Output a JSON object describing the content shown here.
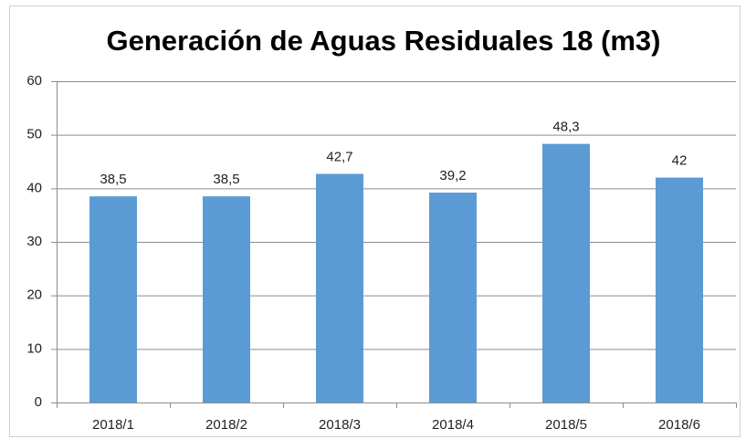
{
  "chart_data": {
    "type": "bar",
    "title": "Generación de Aguas Residuales 18 (m3)",
    "categories": [
      "2018/1",
      "2018/2",
      "2018/3",
      "2018/4",
      "2018/5",
      "2018/6"
    ],
    "values": [
      38.5,
      38.5,
      42.7,
      39.2,
      48.3,
      42
    ],
    "value_labels": [
      "38,5",
      "38,5",
      "42,7",
      "39,2",
      "48,3",
      "42"
    ],
    "color": "#5b9bd5",
    "ylim": [
      0,
      60
    ],
    "yticks": [
      0,
      10,
      20,
      30,
      40,
      50,
      60
    ],
    "grid": true
  }
}
